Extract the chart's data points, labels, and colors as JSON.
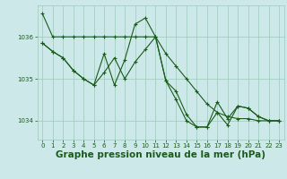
{
  "background_color": "#cce8e8",
  "grid_color": "#99ccbb",
  "line_color": "#1a5c1a",
  "title": "Graphe pression niveau de la mer (hPa)",
  "title_fontsize": 7.5,
  "xlim": [
    -0.5,
    23.5
  ],
  "ylim": [
    1033.55,
    1036.75
  ],
  "yticks": [
    1034,
    1035,
    1036
  ],
  "xticks": [
    0,
    1,
    2,
    3,
    4,
    5,
    6,
    7,
    8,
    9,
    10,
    11,
    12,
    13,
    14,
    15,
    16,
    17,
    18,
    19,
    20,
    21,
    22,
    23
  ],
  "series": [
    {
      "x": [
        0,
        1,
        2,
        3,
        4,
        5,
        6,
        7,
        8,
        9,
        10,
        11,
        12,
        13,
        14,
        15,
        16,
        17,
        18,
        19,
        20,
        21,
        22,
        23
      ],
      "y": [
        1036.55,
        1036.0,
        1036.0,
        1036.0,
        1036.0,
        1036.0,
        1036.0,
        1036.0,
        1036.0,
        1036.0,
        1036.0,
        1036.0,
        1035.6,
        1035.3,
        1035.0,
        1034.7,
        1034.4,
        1034.2,
        1034.1,
        1034.05,
        1034.05,
        1034.0,
        1034.0,
        1034.0
      ]
    },
    {
      "x": [
        0,
        1,
        2,
        3,
        4,
        5,
        6,
        7,
        8,
        9,
        10,
        11,
        12,
        13,
        14,
        15,
        16,
        17,
        18,
        19,
        20,
        21,
        22,
        23
      ],
      "y": [
        1035.85,
        1035.65,
        1035.5,
        1035.2,
        1035.0,
        1034.85,
        1035.6,
        1034.85,
        1035.45,
        1036.3,
        1036.45,
        1036.0,
        1034.95,
        1034.5,
        1034.0,
        1033.85,
        1033.85,
        1034.2,
        1033.9,
        1034.35,
        1034.3,
        1034.1,
        1034.0,
        1034.0
      ]
    },
    {
      "x": [
        0,
        1,
        2,
        3,
        4,
        5,
        6,
        7,
        8,
        9,
        10,
        11,
        12,
        13,
        14,
        15,
        16,
        17,
        18,
        19,
        20,
        21,
        22,
        23
      ],
      "y": [
        1035.85,
        1035.65,
        1035.5,
        1035.2,
        1035.0,
        1034.85,
        1035.15,
        1035.5,
        1035.0,
        1035.4,
        1035.7,
        1036.0,
        1034.95,
        1034.7,
        1034.15,
        1033.85,
        1033.85,
        1034.45,
        1034.05,
        1034.35,
        1034.3,
        1034.1,
        1034.0,
        1034.0
      ]
    }
  ]
}
